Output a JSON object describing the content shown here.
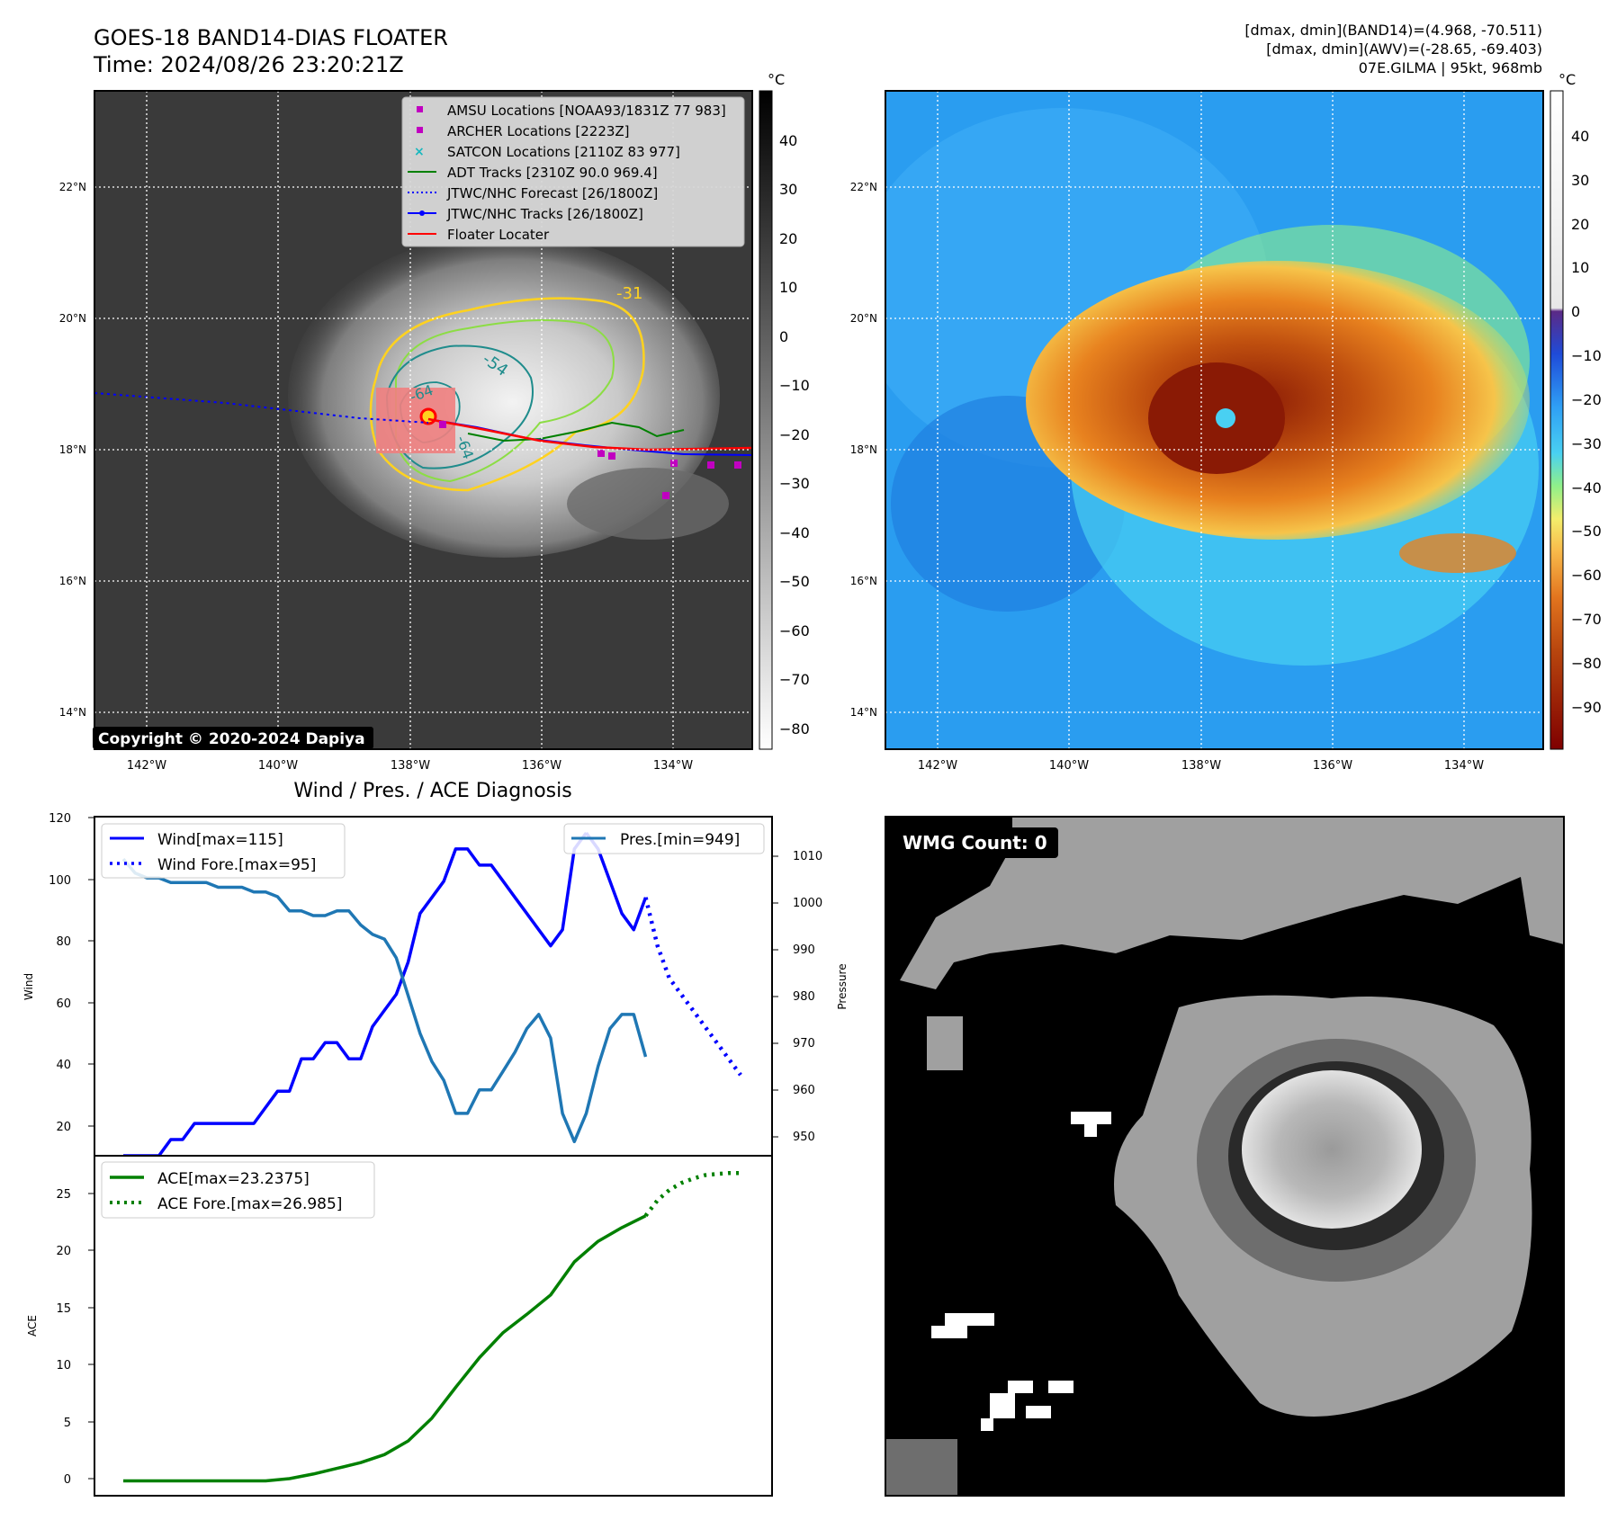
{
  "header": {
    "title": "GOES-18 BAND14-DIAS FLOATER",
    "time": "Time: 2024/08/26 23:20:21Z",
    "stats_band14": "[dmax, dmin](BAND14)=(4.968, -70.511)",
    "stats_awv": "[dmax, dmin](AWV)=(-28.65, -69.403)",
    "storm": "07E.GILMA | 95kt, 968mb"
  },
  "copyright": "Copyright © 2020-2024 Dapiya",
  "colors": {
    "wind": "#0000ff",
    "pressure": "#1f77b4",
    "ace": "#008000",
    "amsu": "#c000c0",
    "satcon": "#17b8be",
    "adt": "#008000",
    "floater": "#ff0000"
  },
  "map": {
    "lat_labels": [
      "22°N",
      "20°N",
      "18°N",
      "16°N",
      "14°N"
    ],
    "lon_labels": [
      "142°W",
      "140°W",
      "138°W",
      "136°W",
      "134°W"
    ],
    "contour_labels": [
      "-31",
      "-54",
      "-64",
      "-64"
    ],
    "legend": [
      {
        "label": "AMSU Locations [NOAA93/1831Z 77 983]",
        "marker": "square",
        "color": "#c000c0"
      },
      {
        "label": "ARCHER Locations [2223Z]",
        "marker": "square",
        "color": "#c000c0"
      },
      {
        "label": "SATCON Locations [2110Z 83 977]",
        "marker": "x",
        "color": "#17b8be"
      },
      {
        "label": "ADT Tracks [2310Z 90.0 969.4]",
        "marker": "line",
        "color": "#008000"
      },
      {
        "label": "JTWC/NHC Forecast [26/1800Z]",
        "marker": "dotted",
        "color": "#0000ff"
      },
      {
        "label": "JTWC/NHC Tracks [26/1800Z]",
        "marker": "line-dot",
        "color": "#0000ff"
      },
      {
        "label": "Floater Locater",
        "marker": "line",
        "color": "#ff0000"
      }
    ]
  },
  "cbar_left": {
    "unit": "°C",
    "ticks": [
      "40",
      "30",
      "20",
      "10",
      "0",
      "−10",
      "−20",
      "−30",
      "−40",
      "−50",
      "−60",
      "−70",
      "−80"
    ]
  },
  "cbar_right": {
    "unit": "°C",
    "ticks": [
      "40",
      "30",
      "20",
      "10",
      "0",
      "−10",
      "−20",
      "−30",
      "−40",
      "−50",
      "−60",
      "−70",
      "−80",
      "−90"
    ]
  },
  "diag": {
    "title": "Wind / Pres. / ACE Diagnosis"
  },
  "wmg": {
    "label": "WMG Count: 0"
  },
  "chart_data": [
    {
      "type": "line",
      "title": "Wind / Pres. / ACE Diagnosis",
      "ylabel": "Wind",
      "ylabel_right": "Pressure",
      "ylim": [
        15,
        120
      ],
      "ylim_right": [
        946,
        1018
      ],
      "x_index_range": [
        0,
        52
      ],
      "y_ticks": [
        "120",
        "100",
        "80",
        "60",
        "40",
        "20"
      ],
      "y_ticks_right": [
        "1010",
        "1000",
        "990",
        "980",
        "970",
        "960",
        "950"
      ],
      "series": [
        {
          "name": "Wind[max=115]",
          "axis": "left",
          "style": "solid",
          "x": [
            0,
            1,
            2,
            3,
            4,
            5,
            6,
            7,
            8,
            9,
            10,
            11,
            12,
            13,
            14,
            15,
            16,
            17,
            18,
            19,
            20,
            21,
            22,
            23,
            24,
            25,
            26,
            27,
            28,
            29,
            30,
            31,
            32,
            33,
            34,
            35,
            36,
            37,
            38,
            39
          ],
          "values": [
            15,
            15,
            15,
            15,
            20,
            20,
            25,
            25,
            25,
            25,
            25,
            25,
            30,
            35,
            35,
            45,
            45,
            50,
            50,
            45,
            45,
            55,
            60,
            65,
            75,
            90,
            95,
            100,
            110,
            110,
            105,
            105,
            100,
            95,
            90,
            85,
            80,
            85,
            110,
            115
          ]
        },
        {
          "name": "",
          "axis": "left",
          "style": "solid",
          "x": [
            39,
            40,
            41,
            42,
            43,
            44
          ],
          "values": [
            115,
            110,
            100,
            90,
            85,
            95
          ]
        },
        {
          "name": "Wind Fore.[max=95]",
          "axis": "left",
          "style": "dotted",
          "x": [
            44,
            45,
            46,
            47,
            48,
            49,
            50,
            51,
            52
          ],
          "values": [
            95,
            80,
            70,
            65,
            60,
            55,
            50,
            45,
            40
          ]
        },
        {
          "name": "Pres.[min=949]",
          "axis": "right",
          "style": "solid",
          "x": [
            0,
            1,
            2,
            3,
            4,
            5,
            6,
            7,
            8,
            9,
            10,
            11,
            12,
            13,
            14,
            15,
            16,
            17,
            18,
            19,
            20,
            21,
            22,
            23,
            24,
            25,
            26,
            27,
            28,
            29,
            30,
            31,
            32,
            33,
            34,
            35,
            36,
            37,
            38,
            39,
            40,
            41,
            42,
            43,
            44
          ],
          "values": [
            1009,
            1006,
            1005,
            1005,
            1004,
            1004,
            1004,
            1004,
            1003,
            1003,
            1003,
            1002,
            1002,
            1001,
            998,
            998,
            997,
            997,
            998,
            998,
            995,
            993,
            992,
            988,
            980,
            972,
            966,
            962,
            955,
            955,
            960,
            960,
            964,
            968,
            973,
            976,
            971,
            955,
            949,
            955,
            965,
            973,
            976,
            976,
            967
          ]
        }
      ]
    },
    {
      "type": "line",
      "ylabel": "ACE",
      "ylim": [
        -1.3,
        28.5
      ],
      "x_index_range": [
        0,
        52
      ],
      "y_ticks": [
        "25",
        "20",
        "15",
        "10",
        "5",
        "0"
      ],
      "series": [
        {
          "name": "ACE[max=23.2375]",
          "style": "solid",
          "x": [
            0,
            4,
            8,
            12,
            14,
            16,
            18,
            20,
            22,
            24,
            26,
            28,
            30,
            32,
            34,
            36,
            38,
            40,
            42,
            44
          ],
          "values": [
            0,
            0,
            0,
            0,
            0.2,
            0.6,
            1.1,
            1.6,
            2.3,
            3.5,
            5.5,
            8.2,
            10.8,
            13.0,
            14.6,
            16.3,
            19.2,
            21.0,
            22.2,
            23.2375
          ]
        },
        {
          "name": "ACE Fore.[max=26.985]",
          "style": "dotted",
          "x": [
            44,
            45,
            46,
            47,
            48,
            49,
            50,
            51,
            52
          ],
          "values": [
            23.2375,
            24.6,
            25.5,
            26.1,
            26.5,
            26.8,
            26.9,
            26.98,
            26.985
          ]
        }
      ]
    }
  ]
}
